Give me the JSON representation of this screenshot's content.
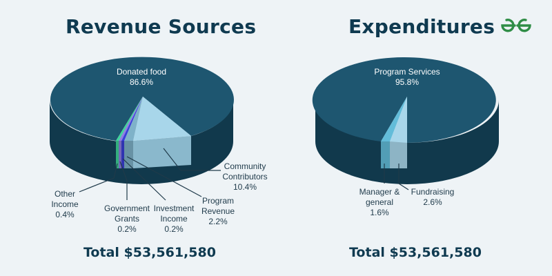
{
  "colors": {
    "background": "#eef3f6",
    "main_top": "#1e5670",
    "main_side": "#11394c",
    "light_top": "#a8d6ea",
    "light_side": "#8ab8cc",
    "brand_green": "#2f8d46"
  },
  "logo": {
    "icon": "geeksforgeeks-logo-icon"
  },
  "chart_data": [
    {
      "type": "pie",
      "title": "Revenue Sources",
      "total_label": "Total $53,561,580",
      "slices": [
        {
          "name": "Donated food",
          "line1": "Donated food",
          "line2": "",
          "value": 86.6,
          "label": "86.6%",
          "color": "#1e5670"
        },
        {
          "name": "Community Contributors",
          "line1": "Community",
          "line2": "Contributors",
          "value": 10.4,
          "label": "10.4%",
          "color": "#a8d6ea"
        },
        {
          "name": "Program Revenue",
          "line1": "Program",
          "line2": "Revenue",
          "value": 2.2,
          "label": "2.2%",
          "color": "#7fb2c9"
        },
        {
          "name": "Investment Income",
          "line1": "Investment",
          "line2": "Income",
          "value": 0.2,
          "label": "0.2%",
          "color": "#3b3fd8"
        },
        {
          "name": "Government Grants",
          "line1": "Government",
          "line2": "Grants",
          "value": 0.2,
          "label": "0.2%",
          "color": "#8e7fe0"
        },
        {
          "name": "Other Income",
          "line1": "Other",
          "line2": "Income",
          "value": 0.4,
          "label": "0.4%",
          "color": "#3fd49a"
        }
      ]
    },
    {
      "type": "pie",
      "title": "Expenditures",
      "total_label": "Total $53,561,580",
      "slices": [
        {
          "name": "Program Services",
          "line1": "Program Services",
          "line2": "",
          "value": 95.8,
          "label": "95.8%",
          "color": "#1e5670"
        },
        {
          "name": "Fundraising",
          "line1": "Fundraising",
          "line2": "",
          "value": 2.6,
          "label": "2.6%",
          "color": "#a8d6ea"
        },
        {
          "name": "Manager & general",
          "line1": "Manager &",
          "line2": "general",
          "value": 1.6,
          "label": "1.6%",
          "color": "#62bcd9"
        }
      ]
    }
  ]
}
